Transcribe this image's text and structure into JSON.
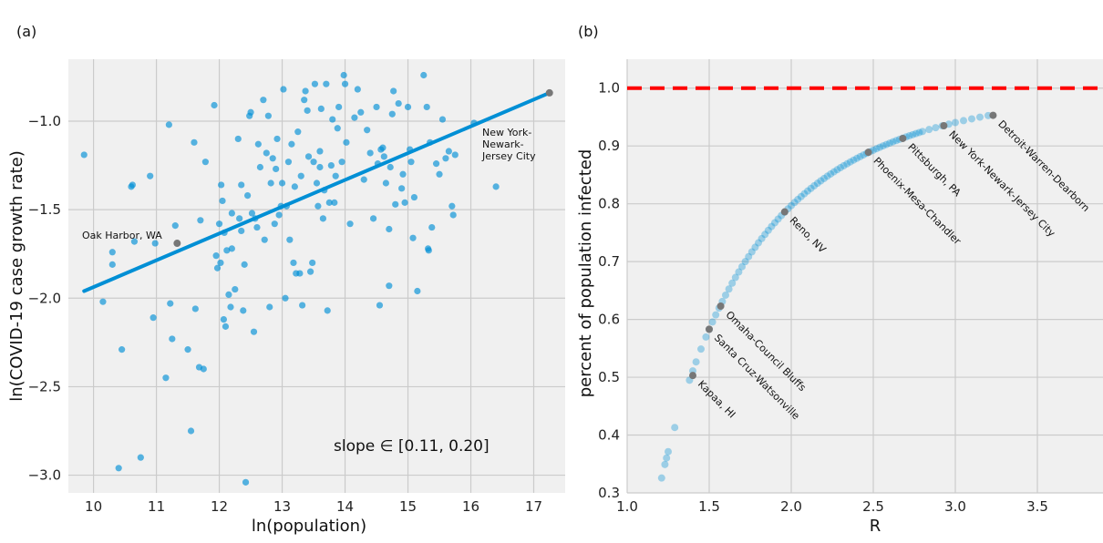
{
  "chart_data": [
    {
      "type": "scatter",
      "panel_label": "(a)",
      "xlabel": "ln(population)",
      "ylabel": "ln(COVID-19 case growth rate)",
      "xlim": [
        9.6,
        17.5
      ],
      "ylim": [
        -3.1,
        -0.65
      ],
      "xticks": [
        10,
        11,
        12,
        13,
        14,
        15,
        16,
        17
      ],
      "yticks": [
        -3.0,
        -2.5,
        -2.0,
        -1.5,
        -1.0
      ],
      "grid": true,
      "colors": {
        "points": "#008fd5",
        "line": "#008fd5",
        "highlight": "#777777"
      },
      "slope_text": "slope ∈ [0.11, 0.20]",
      "fit_line": [
        [
          9.85,
          -1.96
        ],
        [
          17.25,
          -0.84
        ]
      ],
      "highlighted": [
        {
          "label": "Oak Harbor, WA",
          "x": 11.33,
          "y": -1.69
        },
        {
          "label_lines": [
            "New York-",
            "Newark-",
            "Jersey City"
          ],
          "x": 17.25,
          "y": -0.84
        }
      ],
      "points": [
        [
          9.85,
          -1.19
        ],
        [
          10.15,
          -2.02
        ],
        [
          10.3,
          -1.74
        ],
        [
          10.3,
          -1.81
        ],
        [
          10.4,
          -2.96
        ],
        [
          10.45,
          -2.29
        ],
        [
          10.6,
          -1.37
        ],
        [
          10.62,
          -1.36
        ],
        [
          10.65,
          -1.68
        ],
        [
          10.75,
          -2.9
        ],
        [
          10.9,
          -1.31
        ],
        [
          10.95,
          -2.11
        ],
        [
          10.98,
          -1.69
        ],
        [
          11.15,
          -2.45
        ],
        [
          11.2,
          -1.02
        ],
        [
          11.22,
          -2.03
        ],
        [
          11.25,
          -2.23
        ],
        [
          11.3,
          -1.59
        ],
        [
          11.5,
          -2.29
        ],
        [
          11.55,
          -2.75
        ],
        [
          11.6,
          -1.12
        ],
        [
          11.62,
          -2.06
        ],
        [
          11.68,
          -2.39
        ],
        [
          11.7,
          -1.56
        ],
        [
          11.75,
          -2.4
        ],
        [
          11.78,
          -1.23
        ],
        [
          11.92,
          -0.91
        ],
        [
          11.95,
          -1.76
        ],
        [
          11.97,
          -1.83
        ],
        [
          12.0,
          -1.58
        ],
        [
          12.02,
          -1.8
        ],
        [
          12.03,
          -1.36
        ],
        [
          12.05,
          -1.45
        ],
        [
          12.07,
          -2.12
        ],
        [
          12.08,
          -1.63
        ],
        [
          12.1,
          -2.16
        ],
        [
          12.12,
          -1.73
        ],
        [
          12.15,
          -1.98
        ],
        [
          12.18,
          -2.05
        ],
        [
          12.2,
          -1.72
        ],
        [
          12.25,
          -1.95
        ],
        [
          12.3,
          -1.1
        ],
        [
          12.32,
          -1.55
        ],
        [
          12.35,
          -1.36
        ],
        [
          12.38,
          -2.07
        ],
        [
          12.4,
          -1.81
        ],
        [
          12.42,
          -3.04
        ],
        [
          12.45,
          -1.42
        ],
        [
          12.48,
          -0.97
        ],
        [
          12.5,
          -0.95
        ],
        [
          12.52,
          -1.52
        ],
        [
          12.55,
          -2.19
        ],
        [
          12.57,
          -1.55
        ],
        [
          12.6,
          -1.6
        ],
        [
          12.62,
          -1.13
        ],
        [
          12.65,
          -1.26
        ],
        [
          12.7,
          -0.88
        ],
        [
          12.72,
          -1.67
        ],
        [
          12.75,
          -1.18
        ],
        [
          12.78,
          -0.97
        ],
        [
          12.8,
          -2.05
        ],
        [
          12.82,
          -1.35
        ],
        [
          12.85,
          -1.21
        ],
        [
          12.88,
          -1.58
        ],
        [
          12.9,
          -1.27
        ],
        [
          12.92,
          -1.1
        ],
        [
          12.95,
          -1.53
        ],
        [
          12.98,
          -1.48
        ],
        [
          13.0,
          -1.35
        ],
        [
          13.02,
          -0.82
        ],
        [
          13.05,
          -2.0
        ],
        [
          13.07,
          -1.48
        ],
        [
          13.1,
          -1.23
        ],
        [
          13.12,
          -1.67
        ],
        [
          13.15,
          -1.13
        ],
        [
          13.18,
          -1.8
        ],
        [
          13.2,
          -1.37
        ],
        [
          13.22,
          -1.86
        ],
        [
          13.25,
          -1.06
        ],
        [
          13.28,
          -1.86
        ],
        [
          13.3,
          -1.31
        ],
        [
          13.32,
          -2.04
        ],
        [
          13.35,
          -0.88
        ],
        [
          13.37,
          -0.83
        ],
        [
          13.4,
          -0.94
        ],
        [
          13.42,
          -1.2
        ],
        [
          13.45,
          -1.85
        ],
        [
          13.48,
          -1.8
        ],
        [
          13.5,
          -1.23
        ],
        [
          13.52,
          -0.79
        ],
        [
          13.55,
          -1.35
        ],
        [
          13.57,
          -1.48
        ],
        [
          13.6,
          -1.17
        ],
        [
          13.62,
          -0.93
        ],
        [
          13.65,
          -1.55
        ],
        [
          13.67,
          -1.39
        ],
        [
          13.7,
          -0.79
        ],
        [
          13.72,
          -2.07
        ],
        [
          13.75,
          -1.46
        ],
        [
          13.78,
          -1.25
        ],
        [
          13.8,
          -0.99
        ],
        [
          13.83,
          -1.46
        ],
        [
          13.85,
          -1.31
        ],
        [
          13.88,
          -1.04
        ],
        [
          13.9,
          -0.92
        ],
        [
          13.95,
          -1.23
        ],
        [
          13.98,
          -0.74
        ],
        [
          14.0,
          -0.79
        ],
        [
          14.02,
          -1.12
        ],
        [
          14.08,
          -1.58
        ],
        [
          14.15,
          -0.98
        ],
        [
          14.2,
          -0.82
        ],
        [
          14.25,
          -0.95
        ],
        [
          14.3,
          -1.33
        ],
        [
          14.35,
          -1.05
        ],
        [
          14.4,
          -1.18
        ],
        [
          14.45,
          -1.55
        ],
        [
          14.5,
          -0.92
        ],
        [
          14.52,
          -1.24
        ],
        [
          14.55,
          -2.04
        ],
        [
          14.57,
          -1.16
        ],
        [
          14.6,
          -1.15
        ],
        [
          14.62,
          -1.2
        ],
        [
          14.65,
          -1.35
        ],
        [
          14.7,
          -1.61
        ],
        [
          14.72,
          -1.26
        ],
        [
          14.75,
          -0.96
        ],
        [
          14.77,
          -0.83
        ],
        [
          14.8,
          -1.47
        ],
        [
          14.85,
          -0.9
        ],
        [
          14.9,
          -1.38
        ],
        [
          14.92,
          -1.3
        ],
        [
          14.95,
          -1.46
        ],
        [
          15.0,
          -0.92
        ],
        [
          15.03,
          -1.16
        ],
        [
          15.05,
          -1.23
        ],
        [
          15.08,
          -1.66
        ],
        [
          15.1,
          -1.43
        ],
        [
          15.15,
          -1.96
        ],
        [
          15.25,
          -0.74
        ],
        [
          15.3,
          -0.92
        ],
        [
          15.32,
          -1.72
        ],
        [
          15.35,
          -1.12
        ],
        [
          15.38,
          -1.6
        ],
        [
          15.45,
          -1.24
        ],
        [
          15.5,
          -1.3
        ],
        [
          15.55,
          -0.99
        ],
        [
          15.6,
          -1.21
        ],
        [
          15.65,
          -1.17
        ],
        [
          15.7,
          -1.48
        ],
        [
          15.72,
          -1.53
        ],
        [
          15.75,
          -1.19
        ],
        [
          16.05,
          -1.01
        ],
        [
          16.4,
          -1.37
        ],
        [
          15.33,
          -1.73
        ],
        [
          14.7,
          -1.93
        ],
        [
          12.2,
          -1.52
        ],
        [
          13.6,
          -1.26
        ],
        [
          12.35,
          -1.62
        ]
      ]
    },
    {
      "type": "scatter",
      "panel_label": "(b)",
      "xlabel": "R",
      "ylabel": "percent of population infected",
      "xlim": [
        1.0,
        3.9
      ],
      "ylim": [
        0.3,
        1.05
      ],
      "xticks": [
        1.0,
        1.5,
        2.0,
        2.5,
        3.0,
        3.5
      ],
      "yticks": [
        0.3,
        0.4,
        0.5,
        0.6,
        0.7,
        0.8,
        0.9,
        1.0
      ],
      "grid": true,
      "reference_line": {
        "y": 1.0,
        "color": "#ff0000",
        "style": "dashed"
      },
      "colors": {
        "points": "#008fd5",
        "highlight": "#777777"
      },
      "curve_R": [
        1.21,
        1.23,
        1.24,
        1.25,
        1.29,
        1.38,
        1.4,
        1.42,
        1.45,
        1.48,
        1.5,
        1.52,
        1.54,
        1.56,
        1.58,
        1.6,
        1.62,
        1.64,
        1.66,
        1.68,
        1.7,
        1.72,
        1.74,
        1.76,
        1.78,
        1.8,
        1.82,
        1.84,
        1.86,
        1.88,
        1.9,
        1.92,
        1.94,
        1.96,
        1.98,
        2.0,
        2.02,
        2.04,
        2.06,
        2.08,
        2.1,
        2.12,
        2.14,
        2.16,
        2.18,
        2.2,
        2.22,
        2.24,
        2.26,
        2.28,
        2.3,
        2.32,
        2.34,
        2.36,
        2.38,
        2.4,
        2.42,
        2.44,
        2.46,
        2.48,
        2.5,
        2.52,
        2.54,
        2.56,
        2.58,
        2.6,
        2.62,
        2.64,
        2.66,
        2.68,
        2.7,
        2.72,
        2.74,
        2.76,
        2.78,
        2.8,
        2.84,
        2.88,
        2.92,
        2.96,
        3.0,
        3.05,
        3.1,
        3.15,
        3.2
      ],
      "highlighted": [
        {
          "label": "Kapaa, HI",
          "x": 1.4,
          "y": 0.503
        },
        {
          "label": "Santa Cruz-Watsonville",
          "x": 1.5,
          "y": 0.583
        },
        {
          "label": "Omaha-Council Bluffs",
          "x": 1.57,
          "y": 0.623
        },
        {
          "label": "Reno, NV",
          "x": 1.96,
          "y": 0.786
        },
        {
          "label": "Phoenix-Mesa-Chandler",
          "x": 2.47,
          "y": 0.889
        },
        {
          "label": "Pittsburgh, PA",
          "x": 2.68,
          "y": 0.913
        },
        {
          "label": "New York-Newark-Jersey City",
          "x": 2.93,
          "y": 0.935
        },
        {
          "label": "Detroit-Warren-Dearborn",
          "x": 3.23,
          "y": 0.953
        }
      ]
    }
  ]
}
